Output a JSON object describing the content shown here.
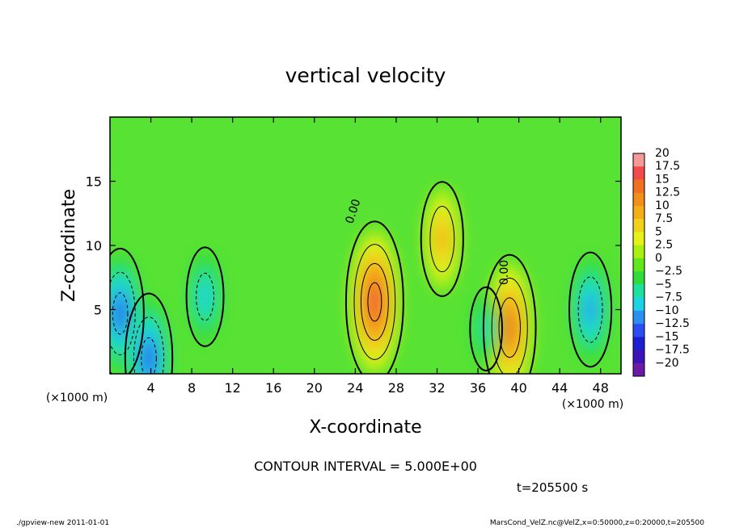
{
  "chart_data": {
    "type": "heatmap",
    "title": "vertical velocity",
    "xlabel": "X-coordinate",
    "ylabel": "Z-coordinate",
    "x_unit_label": "(×1000 m)",
    "y_unit_label": "(×1000 m)",
    "xlim": [
      0,
      50
    ],
    "ylim": [
      0,
      20
    ],
    "x_ticks": [
      4,
      8,
      12,
      16,
      20,
      24,
      28,
      32,
      36,
      40,
      44,
      48
    ],
    "y_ticks": [
      5,
      10,
      15
    ],
    "colorbar_levels": [
      "20",
      "17.5",
      "15",
      "12.5",
      "10",
      "7.5",
      "5",
      "2.5",
      "0",
      "−2.5",
      "−5",
      "−7.5",
      "−10",
      "−12.5",
      "−15",
      "−17.5",
      "−20"
    ],
    "colorbar_colors": [
      "#f49a9a",
      "#f2494a",
      "#f0701f",
      "#f28e1a",
      "#f3ad17",
      "#f2d11d",
      "#e6f01a",
      "#aaef12",
      "#62e61c",
      "#30dc3c",
      "#20e0a0",
      "#1ed2e6",
      "#2a8ff0",
      "#2a4ef2",
      "#1e1ed2",
      "#3a14b8",
      "#6a1aa4"
    ],
    "contour_interval_label": "CONTOUR INTERVAL = 5.000E+00",
    "contour_label": "0.00",
    "features": [
      {
        "kind": "updraft",
        "x": 25.9,
        "z": 5.6,
        "peak": 15
      },
      {
        "kind": "updraft",
        "x": 39.1,
        "z": 3.6,
        "peak": 12.5
      },
      {
        "kind": "updraft",
        "x": 32.5,
        "z": 10.5,
        "peak": 7.5
      },
      {
        "kind": "downdraft",
        "x": 1.0,
        "z": 4.7,
        "peak": -10
      },
      {
        "kind": "downdraft",
        "x": 3.8,
        "z": 1.2,
        "peak": -10
      },
      {
        "kind": "downdraft",
        "x": 9.3,
        "z": 6.0,
        "peak": -5
      },
      {
        "kind": "downdraft",
        "x": 47.0,
        "z": 5.0,
        "peak": -7.5
      },
      {
        "kind": "downdraft",
        "x": 36.8,
        "z": 3.5,
        "peak": -2.5
      }
    ],
    "time_label": "t=205500 s",
    "footer_left": "./gpview-new   2011-01-01",
    "footer_right": "MarsCond_VelZ.nc@VelZ,x=0:50000,z=0:20000,t=205500"
  }
}
